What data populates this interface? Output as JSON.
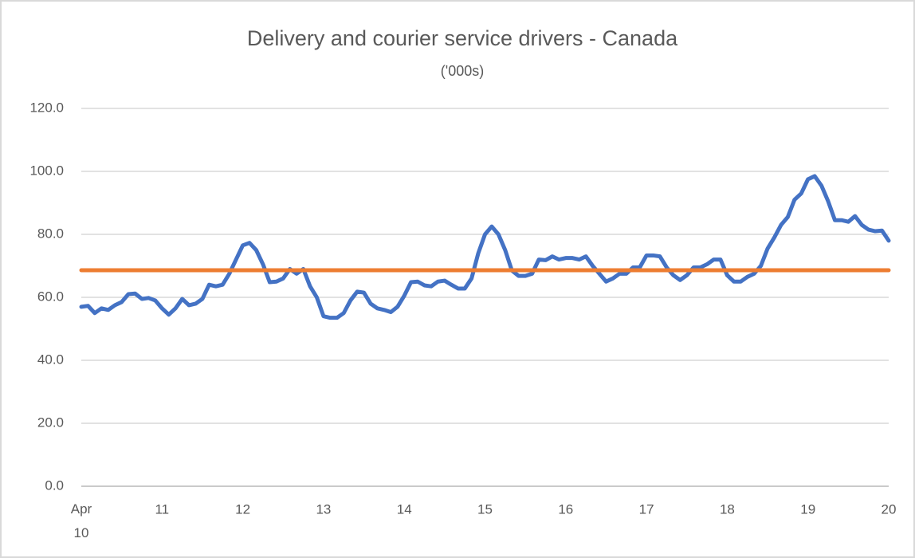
{
  "chart_data": {
    "type": "line",
    "title": "Delivery and courier service drivers  - Canada",
    "subtitle": "('000s)",
    "categories": [
      "Apr 10",
      null,
      null,
      null,
      null,
      null,
      null,
      null,
      null,
      null,
      null,
      null,
      "11",
      null,
      null,
      null,
      null,
      null,
      null,
      null,
      null,
      null,
      null,
      null,
      "12",
      null,
      null,
      null,
      null,
      null,
      null,
      null,
      null,
      null,
      null,
      null,
      "13",
      null,
      null,
      null,
      null,
      null,
      null,
      null,
      null,
      null,
      null,
      null,
      "14",
      null,
      null,
      null,
      null,
      null,
      null,
      null,
      null,
      null,
      null,
      null,
      "15",
      null,
      null,
      null,
      null,
      null,
      null,
      null,
      null,
      null,
      null,
      null,
      "16",
      null,
      null,
      null,
      null,
      null,
      null,
      null,
      null,
      null,
      null,
      null,
      "17",
      null,
      null,
      null,
      null,
      null,
      null,
      null,
      null,
      null,
      null,
      null,
      "18",
      null,
      null,
      null,
      null,
      null,
      null,
      null,
      null,
      null,
      null,
      null,
      "19",
      null,
      null,
      null,
      null,
      null,
      null,
      null,
      null,
      null,
      null,
      null,
      "20"
    ],
    "series": [
      {
        "color": "#4472c4",
        "values": [
          57.0,
          57.3,
          55.0,
          56.5,
          56.0,
          57.5,
          58.5,
          61.0,
          61.2,
          59.5,
          59.8,
          59.0,
          56.5,
          54.5,
          56.5,
          59.5,
          57.5,
          58.0,
          59.5,
          64.0,
          63.5,
          64.0,
          67.5,
          72.0,
          76.5,
          77.3,
          75.0,
          70.5,
          64.8,
          65.0,
          66.0,
          69.0,
          67.5,
          69.0,
          63.5,
          60.0,
          54.0,
          53.5,
          53.5,
          55.0,
          59.0,
          61.8,
          61.5,
          58.0,
          56.5,
          56.0,
          55.3,
          57.0,
          60.5,
          64.8,
          65.0,
          63.8,
          63.5,
          65.0,
          65.3,
          64.0,
          62.8,
          62.8,
          66.0,
          74.0,
          80.0,
          82.5,
          80.0,
          75.0,
          68.5,
          66.8,
          66.8,
          67.5,
          72.0,
          71.8,
          73.0,
          72.0,
          72.5,
          72.5,
          72.0,
          73.0,
          70.0,
          67.5,
          65.0,
          66.0,
          67.5,
          67.5,
          69.5,
          69.5,
          73.3,
          73.3,
          73.0,
          69.5,
          67.0,
          65.5,
          67.0,
          69.5,
          69.5,
          70.5,
          72.0,
          72.0,
          67.0,
          65.0,
          65.0,
          66.5,
          67.5,
          70.0,
          75.5,
          79.0,
          83.0,
          85.5,
          91.0,
          93.0,
          97.5,
          98.5,
          95.5,
          90.5,
          84.5,
          84.5,
          84.0,
          85.8,
          83.0,
          81.5,
          81.0,
          81.2,
          78.0
        ]
      },
      {
        "color": "#ed7d31",
        "values": [
          68.6,
          68.6,
          68.6,
          68.6,
          68.6,
          68.6,
          68.6,
          68.6,
          68.6,
          68.6,
          68.6,
          68.6,
          68.6,
          68.6,
          68.6,
          68.6,
          68.6,
          68.6,
          68.6,
          68.6,
          68.6,
          68.6,
          68.6,
          68.6,
          68.6,
          68.6,
          68.6,
          68.6,
          68.6,
          68.6,
          68.6,
          68.6,
          68.6,
          68.6,
          68.6,
          68.6,
          68.6,
          68.6,
          68.6,
          68.6,
          68.6,
          68.6,
          68.6,
          68.6,
          68.6,
          68.6,
          68.6,
          68.6,
          68.6,
          68.6,
          68.6,
          68.6,
          68.6,
          68.6,
          68.6,
          68.6,
          68.6,
          68.6,
          68.6,
          68.6,
          68.6,
          68.6,
          68.6,
          68.6,
          68.6,
          68.6,
          68.6,
          68.6,
          68.6,
          68.6,
          68.6,
          68.6,
          68.6,
          68.6,
          68.6,
          68.6,
          68.6,
          68.6,
          68.6,
          68.6,
          68.6,
          68.6,
          68.6,
          68.6,
          68.6,
          68.6,
          68.6,
          68.6,
          68.6,
          68.6,
          68.6,
          68.6,
          68.6,
          68.6,
          68.6,
          68.6,
          68.6,
          68.6,
          68.6,
          68.6,
          68.6,
          68.6,
          68.6,
          68.6,
          68.6,
          68.6,
          68.6,
          68.6,
          68.6,
          68.6,
          68.6,
          68.6,
          68.6,
          68.6,
          68.6,
          68.6,
          68.6,
          68.6,
          68.6,
          68.6,
          68.6
        ]
      }
    ],
    "ylim": [
      0,
      120
    ],
    "yticks": [
      {
        "value": 0,
        "label": "0.0"
      },
      {
        "value": 20,
        "label": "20.0"
      },
      {
        "value": 40,
        "label": "40.0"
      },
      {
        "value": 60,
        "label": "60.0"
      },
      {
        "value": 80,
        "label": "80.0"
      },
      {
        "value": 100,
        "label": "100.0"
      },
      {
        "value": 120,
        "label": "120.0"
      }
    ],
    "grid": true
  }
}
